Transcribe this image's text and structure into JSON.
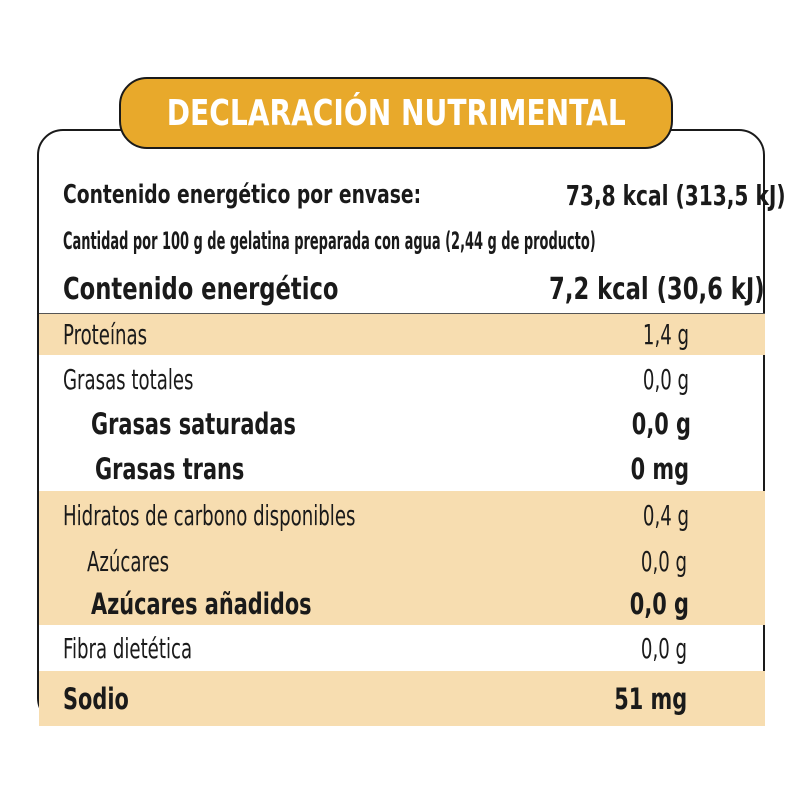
{
  "header": {
    "title": "DECLARACIÓN NUTRIMENTAL"
  },
  "energy": {
    "per_package_label": "Contenido energético por envase:",
    "per_package_value": "73,8 kcal (313,5 kJ)",
    "serving_note": "Cantidad por 100 g de gelatina preparada con agua (2,44 g de producto)",
    "energy_label": "Contenido energético",
    "energy_value": "7,2 kcal (30,6 kJ)"
  },
  "nutrients": [
    {
      "label": "Proteínas",
      "value": "1,4 g"
    },
    {
      "label": "Grasas totales",
      "value": "0,0 g"
    },
    {
      "label": "Grasas saturadas",
      "value": "0,0 g"
    },
    {
      "label": "Grasas trans",
      "value": "0 mg"
    },
    {
      "label": "Hidratos de carbono disponibles",
      "value": "0,4 g"
    },
    {
      "label": "Azúcares",
      "value": "0,0 g"
    },
    {
      "label": "Azúcares añadidos",
      "value": "0,0 g"
    },
    {
      "label": "Fibra dietética",
      "value": "0,0 g"
    },
    {
      "label": "Sodio",
      "value": "51 mg"
    }
  ],
  "colors": {
    "accent": "#e8a92b",
    "shade": "#f7ddb0",
    "text": "#1a1a1a"
  }
}
